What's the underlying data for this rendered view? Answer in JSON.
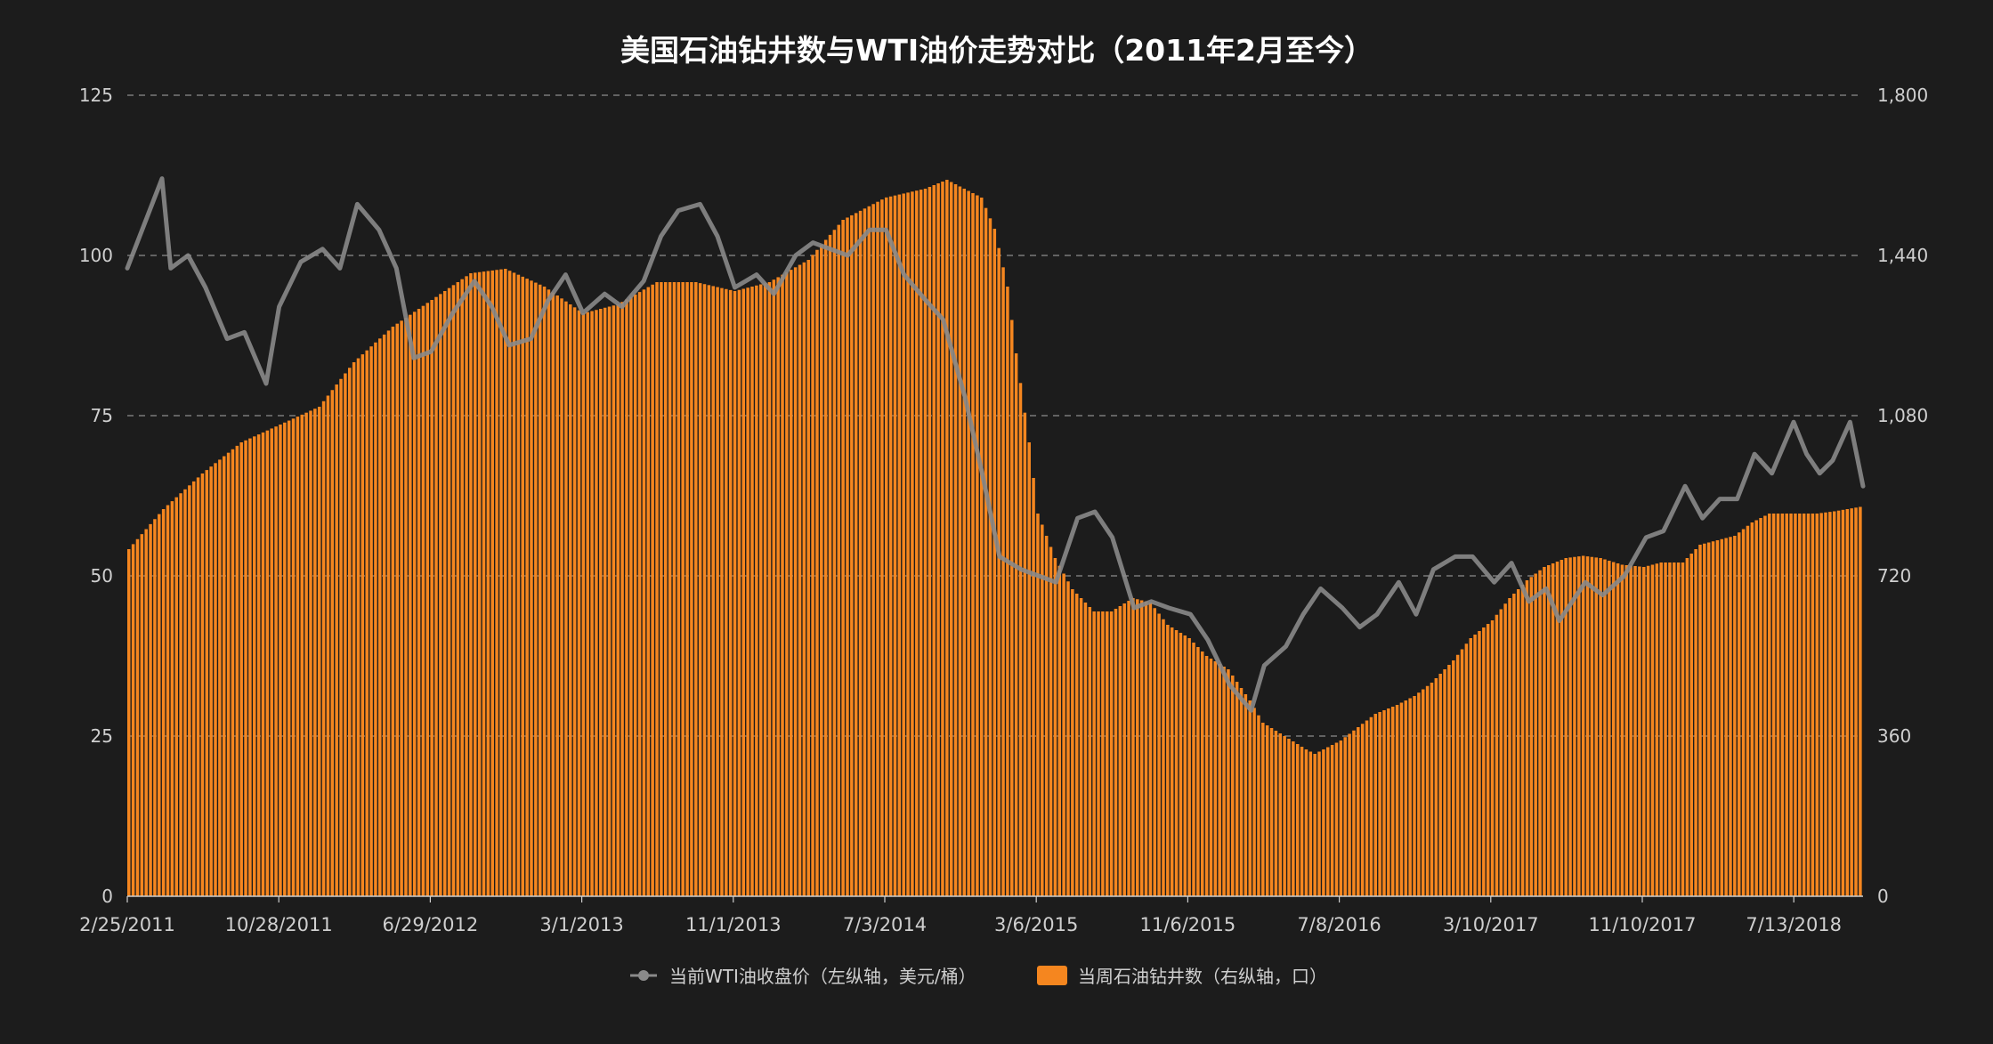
{
  "chart_data": {
    "type": "bar+line",
    "title": "美国石油钻井数与WTI油价走势对比（2011年2月至今）",
    "x_tick_labels": [
      "2/25/2011",
      "10/28/2011",
      "6/29/2012",
      "3/1/2013",
      "11/1/2013",
      "7/3/2014",
      "3/6/2015",
      "11/6/2015",
      "7/8/2016",
      "3/10/2017",
      "11/10/2017",
      "7/13/2018"
    ],
    "x_start_date": "2011-02-25",
    "x_end_date": "2018-10-26",
    "left_axis": {
      "min": 0,
      "max": 125,
      "ticks": [
        "0",
        "25",
        "50",
        "75",
        "100",
        "125"
      ]
    },
    "right_axis": {
      "min": 0,
      "max": 1800,
      "ticks": [
        "0",
        "360",
        "720",
        "1,080",
        "1,440",
        "1,800"
      ]
    },
    "grid": "dashed horizontal",
    "legend_position": "bottom-center",
    "series": [
      {
        "name": "当前WTI油收盘价（左纵轴，美元/桶）",
        "type": "line",
        "axis": "left",
        "color": "#8a8a8a",
        "points": [
          [
            "2011-02-25",
            98
          ],
          [
            "2011-03-25",
            105
          ],
          [
            "2011-04-22",
            112
          ],
          [
            "2011-05-06",
            98
          ],
          [
            "2011-06-03",
            100
          ],
          [
            "2011-07-01",
            95
          ],
          [
            "2011-08-05",
            87
          ],
          [
            "2011-09-02",
            88
          ],
          [
            "2011-10-07",
            80
          ],
          [
            "2011-10-28",
            92
          ],
          [
            "2011-12-02",
            99
          ],
          [
            "2012-01-06",
            101
          ],
          [
            "2012-02-03",
            98
          ],
          [
            "2012-03-02",
            108
          ],
          [
            "2012-04-06",
            104
          ],
          [
            "2012-05-04",
            98
          ],
          [
            "2012-06-01",
            84
          ],
          [
            "2012-06-29",
            85
          ],
          [
            "2012-08-03",
            91
          ],
          [
            "2012-09-07",
            96
          ],
          [
            "2012-10-05",
            92
          ],
          [
            "2012-11-02",
            86
          ],
          [
            "2012-12-07",
            87
          ],
          [
            "2013-01-04",
            93
          ],
          [
            "2013-02-01",
            97
          ],
          [
            "2013-03-01",
            91
          ],
          [
            "2013-04-05",
            94
          ],
          [
            "2013-05-03",
            92
          ],
          [
            "2013-06-07",
            96
          ],
          [
            "2013-07-05",
            103
          ],
          [
            "2013-08-02",
            107
          ],
          [
            "2013-09-06",
            108
          ],
          [
            "2013-10-04",
            103
          ],
          [
            "2013-11-01",
            95
          ],
          [
            "2013-12-06",
            97
          ],
          [
            "2014-01-03",
            94
          ],
          [
            "2014-02-07",
            100
          ],
          [
            "2014-03-07",
            102
          ],
          [
            "2014-04-04",
            101
          ],
          [
            "2014-05-02",
            100
          ],
          [
            "2014-06-06",
            104
          ],
          [
            "2014-07-03",
            104
          ],
          [
            "2014-08-01",
            97
          ],
          [
            "2014-09-05",
            93
          ],
          [
            "2014-10-03",
            90
          ],
          [
            "2014-11-07",
            78
          ],
          [
            "2014-12-05",
            66
          ],
          [
            "2015-01-02",
            53
          ],
          [
            "2015-02-06",
            51
          ],
          [
            "2015-03-06",
            50
          ],
          [
            "2015-04-03",
            49
          ],
          [
            "2015-05-08",
            59
          ],
          [
            "2015-06-05",
            60
          ],
          [
            "2015-07-03",
            56
          ],
          [
            "2015-08-07",
            45
          ],
          [
            "2015-09-04",
            46
          ],
          [
            "2015-10-02",
            45
          ],
          [
            "2015-11-06",
            44
          ],
          [
            "2015-12-04",
            40
          ],
          [
            "2016-01-08",
            33
          ],
          [
            "2016-02-12",
            29
          ],
          [
            "2016-03-04",
            36
          ],
          [
            "2016-04-08",
            39
          ],
          [
            "2016-05-06",
            44
          ],
          [
            "2016-06-03",
            48
          ],
          [
            "2016-07-08",
            45
          ],
          [
            "2016-08-05",
            42
          ],
          [
            "2016-09-02",
            44
          ],
          [
            "2016-10-07",
            49
          ],
          [
            "2016-11-04",
            44
          ],
          [
            "2016-12-02",
            51
          ],
          [
            "2017-01-06",
            53
          ],
          [
            "2017-02-03",
            53
          ],
          [
            "2017-03-10",
            49
          ],
          [
            "2017-04-07",
            52
          ],
          [
            "2017-05-05",
            46
          ],
          [
            "2017-06-02",
            48
          ],
          [
            "2017-06-23",
            43
          ],
          [
            "2017-07-07",
            45
          ],
          [
            "2017-08-04",
            49
          ],
          [
            "2017-09-01",
            47
          ],
          [
            "2017-10-06",
            50
          ],
          [
            "2017-11-10",
            56
          ],
          [
            "2017-12-08",
            57
          ],
          [
            "2018-01-12",
            64
          ],
          [
            "2018-02-09",
            59
          ],
          [
            "2018-03-09",
            62
          ],
          [
            "2018-04-06",
            62
          ],
          [
            "2018-05-04",
            69
          ],
          [
            "2018-06-01",
            66
          ],
          [
            "2018-07-06",
            74
          ],
          [
            "2018-07-27",
            69
          ],
          [
            "2018-08-17",
            66
          ],
          [
            "2018-09-07",
            68
          ],
          [
            "2018-10-05",
            74
          ],
          [
            "2018-10-26",
            64
          ]
        ]
      },
      {
        "name": "当周石油钻井数（右纵轴，口）",
        "type": "bar",
        "axis": "right",
        "color": "#f5861f",
        "points": [
          [
            "2011-02-25",
            780
          ],
          [
            "2011-04-22",
            870
          ],
          [
            "2011-06-24",
            950
          ],
          [
            "2011-08-26",
            1020
          ],
          [
            "2011-10-28",
            1060
          ],
          [
            "2011-12-30",
            1100
          ],
          [
            "2012-02-24",
            1200
          ],
          [
            "2012-04-27",
            1280
          ],
          [
            "2012-06-29",
            1340
          ],
          [
            "2012-08-31",
            1400
          ],
          [
            "2012-10-26",
            1410
          ],
          [
            "2012-12-28",
            1370
          ],
          [
            "2013-03-01",
            1310
          ],
          [
            "2013-04-26",
            1330
          ],
          [
            "2013-06-28",
            1380
          ],
          [
            "2013-08-30",
            1380
          ],
          [
            "2013-11-01",
            1360
          ],
          [
            "2013-12-27",
            1380
          ],
          [
            "2014-02-28",
            1430
          ],
          [
            "2014-04-25",
            1520
          ],
          [
            "2014-07-03",
            1570
          ],
          [
            "2014-09-05",
            1590
          ],
          [
            "2014-10-10",
            1610
          ],
          [
            "2014-12-05",
            1570
          ],
          [
            "2014-12-26",
            1500
          ],
          [
            "2015-01-16",
            1370
          ],
          [
            "2015-01-30",
            1220
          ],
          [
            "2015-02-20",
            1020
          ],
          [
            "2015-03-06",
            860
          ],
          [
            "2015-04-03",
            760
          ],
          [
            "2015-05-01",
            690
          ],
          [
            "2015-06-05",
            640
          ],
          [
            "2015-07-03",
            640
          ],
          [
            "2015-08-07",
            670
          ],
          [
            "2015-09-04",
            660
          ],
          [
            "2015-10-02",
            610
          ],
          [
            "2015-11-06",
            580
          ],
          [
            "2015-12-04",
            540
          ],
          [
            "2016-01-08",
            510
          ],
          [
            "2016-02-12",
            440
          ],
          [
            "2016-03-04",
            390
          ],
          [
            "2016-04-08",
            360
          ],
          [
            "2016-05-13",
            330
          ],
          [
            "2016-05-27",
            320
          ],
          [
            "2016-07-08",
            350
          ],
          [
            "2016-08-05",
            380
          ],
          [
            "2016-09-02",
            410
          ],
          [
            "2016-10-07",
            430
          ],
          [
            "2016-11-04",
            450
          ],
          [
            "2016-12-02",
            480
          ],
          [
            "2017-01-06",
            530
          ],
          [
            "2017-02-03",
            580
          ],
          [
            "2017-03-10",
            620
          ],
          [
            "2017-04-07",
            670
          ],
          [
            "2017-05-05",
            710
          ],
          [
            "2017-06-02",
            740
          ],
          [
            "2017-07-07",
            760
          ],
          [
            "2017-08-04",
            765
          ],
          [
            "2017-09-01",
            760
          ],
          [
            "2017-10-06",
            745
          ],
          [
            "2017-11-10",
            740
          ],
          [
            "2017-12-08",
            750
          ],
          [
            "2018-01-12",
            750
          ],
          [
            "2018-02-09",
            790
          ],
          [
            "2018-03-09",
            800
          ],
          [
            "2018-04-06",
            810
          ],
          [
            "2018-05-04",
            840
          ],
          [
            "2018-06-01",
            860
          ],
          [
            "2018-07-13",
            860
          ],
          [
            "2018-08-17",
            860
          ],
          [
            "2018-09-14",
            865
          ],
          [
            "2018-10-26",
            875
          ]
        ]
      }
    ]
  }
}
